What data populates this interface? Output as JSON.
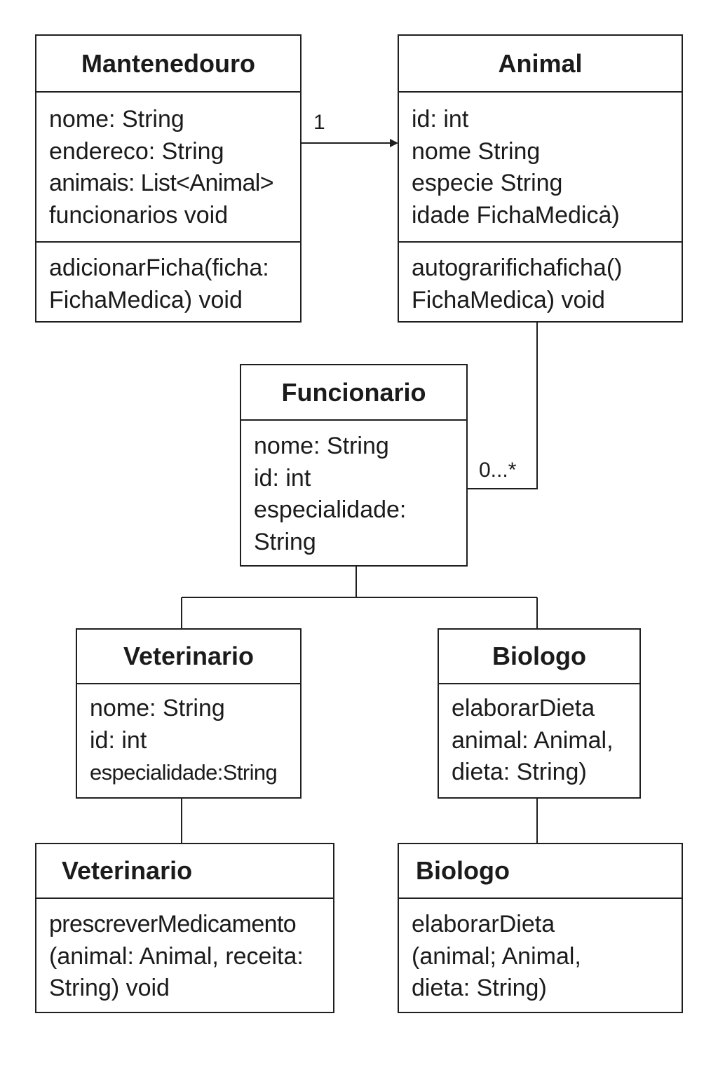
{
  "diagram": {
    "classes": {
      "mantenedouro": {
        "name": "Mantenedouro",
        "attributes": [
          "nome: String",
          "endereco: String",
          "animais: List<Animal>",
          "funcionarios void"
        ],
        "methods": [
          "adicionarFicha(ficha:",
          "FichaMedica) void"
        ]
      },
      "animal": {
        "name": "Animal",
        "attributes": [
          "id: int",
          "nome String",
          "especie String",
          "idade FichaMedicȧ)"
        ],
        "methods": [
          "autograrifichaficha()",
          "FichaMedica) void"
        ]
      },
      "funcionario": {
        "name": "Funcionario",
        "attributes": [
          "nome: String",
          "id: int",
          "especialidade:",
          "String"
        ]
      },
      "veterinario_top": {
        "name": "Veterinario",
        "attributes": [
          "nome: String",
          "id: int",
          "especialidade:String"
        ]
      },
      "biologo_top": {
        "name": "Biologo",
        "attributes": [
          "elaborarDieta",
          "animal: Animal,",
          "dieta: String)"
        ]
      },
      "veterinario_bottom": {
        "name": "Veterinario",
        "methods": [
          "prescreverMedicamento",
          "(animal: Animal, receita:",
          "String) void"
        ]
      },
      "biologo_bottom": {
        "name": "Biologo",
        "methods": [
          "elaborarDieta",
          "(animal; Animal,",
          "dieta: String)"
        ]
      }
    },
    "relations": {
      "mantenedouro_animal": {
        "multiplicity": "1"
      },
      "animal_funcionario": {
        "multiplicity": "0...*"
      }
    }
  }
}
